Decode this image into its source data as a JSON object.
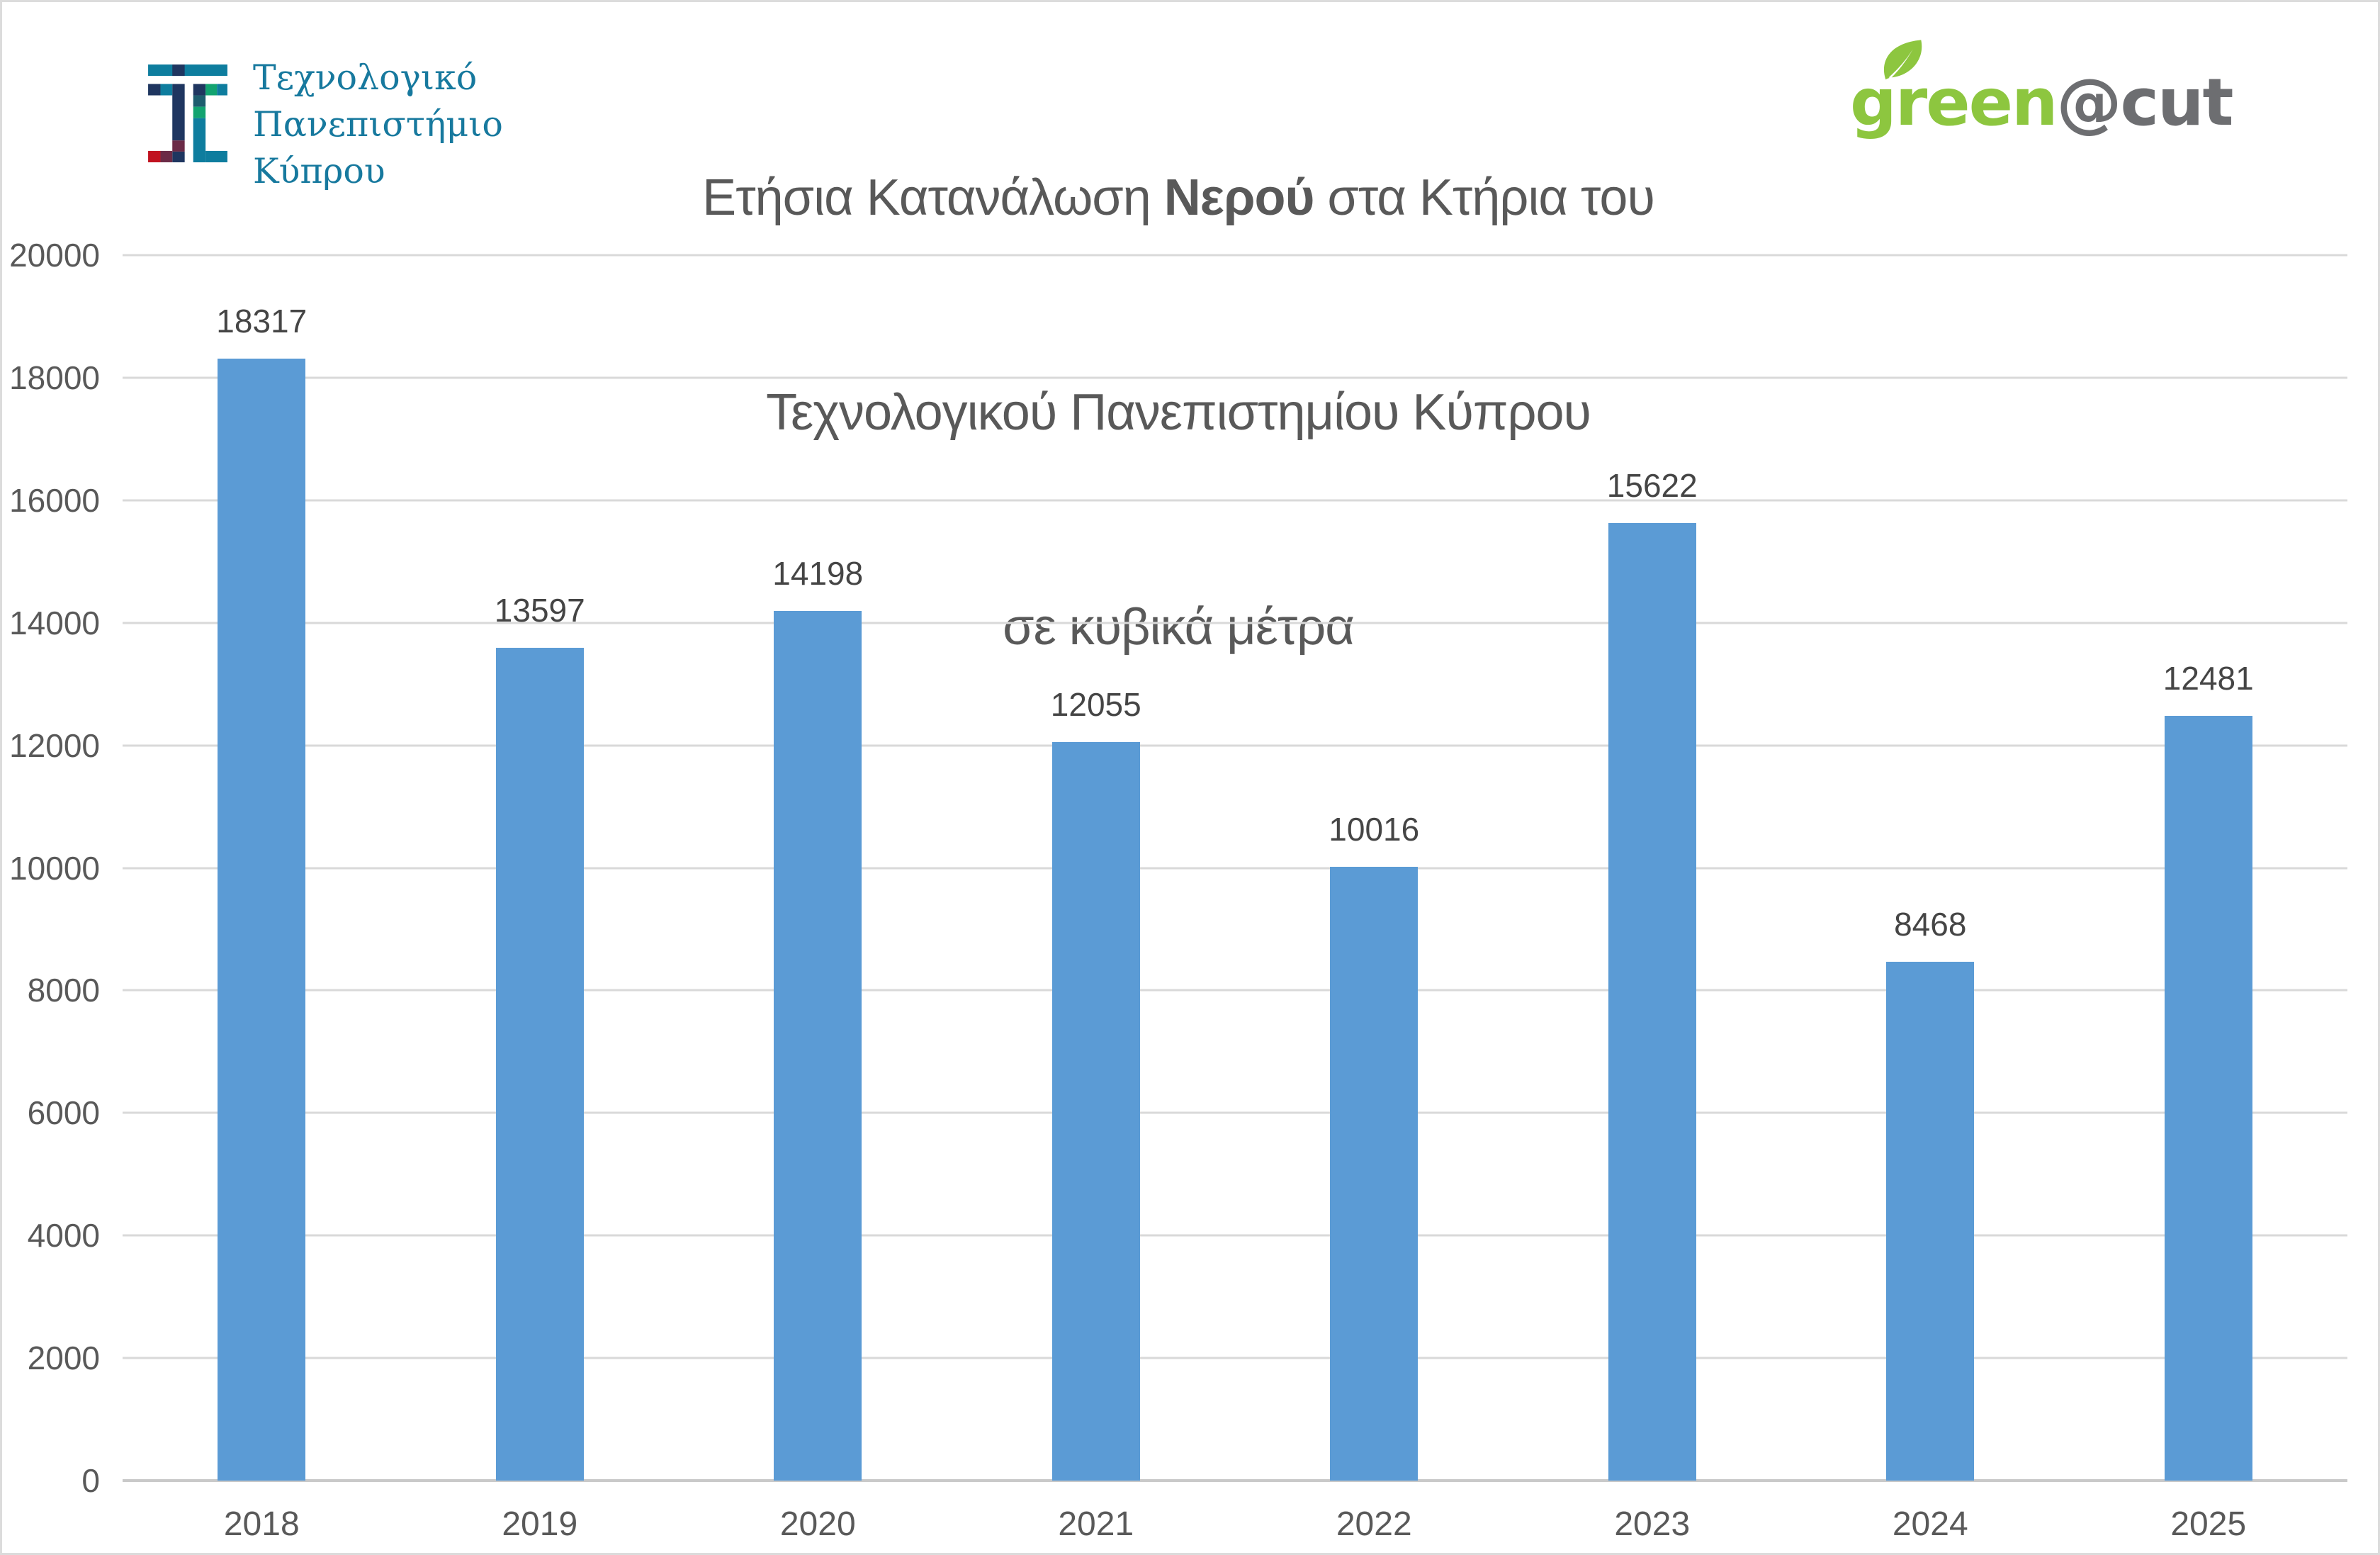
{
  "header": {
    "university_name": [
      "Τεχνολογικό",
      "Πανεπιστήμιο",
      "Κύπρου"
    ],
    "university_logo_icon": "cut-mosaic-logo",
    "brand": {
      "green": "green",
      "at_cut": "@cut",
      "leaf_icon": "leaf-icon"
    }
  },
  "title": {
    "line1_prefix": "Ετήσια Κατανάλωση ",
    "line1_bold": "Νερού",
    "line1_suffix": " στα Κτήρια του",
    "line2": "Τεχνολογικού Πανεπιστημίου Κύπρου",
    "line3": "σε κυβικά μέτρα"
  },
  "chart_data": {
    "type": "bar",
    "title": "Ετήσια Κατανάλωση Νερού στα Κτήρια του Τεχνολογικού Πανεπιστημίου Κύπρου σε κυβικά μέτρα",
    "categories": [
      "2018",
      "2019",
      "2020",
      "2021",
      "2022",
      "2023",
      "2024",
      "2025"
    ],
    "values": [
      18317,
      13597,
      14198,
      12055,
      10016,
      15622,
      8468,
      12481
    ],
    "xlabel": "",
    "ylabel": "",
    "ylim": [
      0,
      20000
    ],
    "yticks": [
      0,
      2000,
      4000,
      6000,
      8000,
      10000,
      12000,
      14000,
      16000,
      18000,
      20000
    ],
    "grid": true,
    "legend": "none",
    "value_labels": true
  },
  "colors": {
    "bar": "#5B9BD5",
    "grid": "#D9D9D9",
    "axis_line": "#C9C9C9",
    "axis_text": "#595959",
    "title_gray": "#595959",
    "university_teal": "#17799E",
    "green_brand": "#8DC63F",
    "brand_gray": "#6D6E71",
    "logo_teal": "#0E7D9E",
    "logo_navy": "#1F3660",
    "logo_green": "#12A370",
    "logo_dark_teal": "#1D5D6E",
    "logo_maroon": "#6C2B47",
    "logo_red": "#C1121F"
  }
}
